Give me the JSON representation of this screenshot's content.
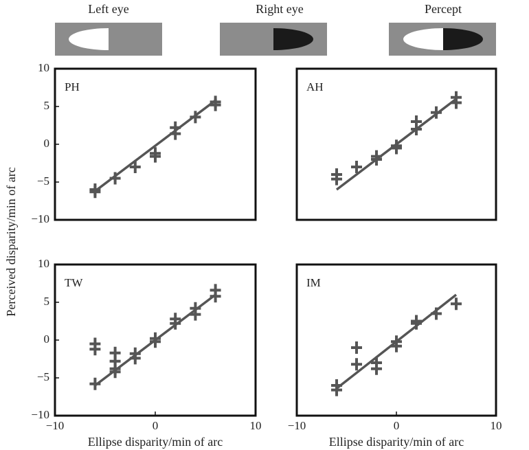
{
  "stimuli": [
    "Left eye",
    "Right eye",
    "Percept"
  ],
  "ylabel": "Perceived disparity/min of arc",
  "chart_data": [
    {
      "type": "scatter",
      "label": "PH",
      "x": [
        -6,
        -6,
        -4,
        -2,
        0,
        0,
        2,
        2,
        4,
        6,
        6
      ],
      "values": [
        -6,
        -6.3,
        -4.5,
        -3,
        -1.2,
        -1.6,
        2.2,
        1.4,
        3.6,
        5.6,
        5.2
      ],
      "fit_x": [
        -6,
        6
      ],
      "fit_values": [
        -6.2,
        5.8
      ],
      "xlim": [
        -10,
        10
      ],
      "ylim": [
        -10,
        10
      ],
      "yticks": [
        {
          "value": -10,
          "label": "−10"
        },
        {
          "value": -5,
          "label": "−5"
        },
        0,
        5,
        10
      ],
      "color": "#555555"
    },
    {
      "type": "scatter",
      "label": "AH",
      "x": [
        -6,
        -6,
        -4,
        -2,
        -2,
        0,
        0,
        2,
        2,
        4,
        6,
        6
      ],
      "values": [
        -4,
        -4.6,
        -3,
        -1.6,
        -2,
        -0.2,
        -0.5,
        3,
        2,
        4.2,
        6.2,
        5.5
      ],
      "fit_x": [
        -6,
        6
      ],
      "fit_values": [
        -6,
        6
      ],
      "xlim": [
        -10,
        10
      ],
      "ylim": [
        -10,
        10
      ],
      "color": "#555555"
    },
    {
      "type": "scatter",
      "label": "TW",
      "x": [
        -6,
        -6,
        -6,
        -4,
        -4,
        -4,
        -4,
        -2,
        -2,
        0,
        0,
        2,
        2,
        4,
        4,
        6,
        6
      ],
      "values": [
        -0.5,
        -1.2,
        -5.8,
        -1.7,
        -2.8,
        -3.8,
        -4.2,
        -1.8,
        -2.4,
        0.2,
        -0.2,
        2.8,
        2.2,
        4.2,
        3.4,
        6.6,
        5.8
      ],
      "fit_x": [
        -6,
        6
      ],
      "fit_values": [
        -6,
        6
      ],
      "xlim": [
        -10,
        10
      ],
      "ylim": [
        -10,
        10
      ],
      "xticks": [
        {
          "value": -10,
          "label": "−10"
        },
        0,
        10
      ],
      "yticks": [
        {
          "value": -10,
          "label": "−10"
        },
        {
          "value": -5,
          "label": "−5"
        },
        0,
        5,
        10
      ],
      "xlabel": "Ellipse disparity/min of arc",
      "color": "#555555"
    },
    {
      "type": "scatter",
      "label": "IM",
      "x": [
        -6,
        -6,
        -4,
        -4,
        -2,
        -2,
        0,
        0,
        2,
        2,
        4,
        6
      ],
      "values": [
        -6,
        -6.6,
        -1,
        -3.2,
        -3,
        -3.8,
        -0.2,
        -0.8,
        2.5,
        2.2,
        3.5,
        4.8
      ],
      "fit_x": [
        -6,
        6
      ],
      "fit_values": [
        -6.4,
        6
      ],
      "xlim": [
        -10,
        10
      ],
      "ylim": [
        -10,
        10
      ],
      "xticks": [
        {
          "value": -10,
          "label": "−10"
        },
        0,
        10
      ],
      "xlabel": "Ellipse disparity/min of arc",
      "color": "#555555"
    }
  ]
}
